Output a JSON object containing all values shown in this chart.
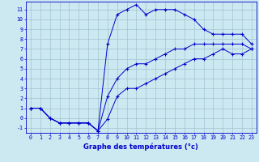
{
  "xlabel": "Graphe des températures (°c)",
  "hours": [
    0,
    1,
    2,
    3,
    4,
    5,
    6,
    7,
    8,
    9,
    10,
    11,
    12,
    13,
    14,
    15,
    16,
    17,
    18,
    19,
    20,
    21,
    22,
    23
  ],
  "temp_max": [
    1,
    1,
    0,
    -0.5,
    -0.5,
    -0.5,
    -0.5,
    -1.3,
    7.5,
    10.5,
    11,
    11.5,
    10.5,
    11,
    11,
    11,
    10.5,
    10,
    9,
    8.5,
    8.5,
    8.5,
    8.5,
    7.5
  ],
  "temp_min": [
    1,
    1,
    0,
    -0.5,
    -0.5,
    -0.5,
    -0.5,
    -1.3,
    -0.1,
    2.2,
    3,
    3,
    3.5,
    4,
    4.5,
    5,
    5.5,
    6,
    6,
    6.5,
    7,
    6.5,
    6.5,
    7
  ],
  "temp_mean": [
    1,
    1,
    0,
    -0.5,
    -0.5,
    -0.5,
    -0.5,
    -1.3,
    2.2,
    4,
    5,
    5.5,
    5.5,
    6,
    6.5,
    7,
    7,
    7.5,
    7.5,
    7.5,
    7.5,
    7.5,
    7.5,
    7
  ],
  "ylim": [
    -1.5,
    11.8
  ],
  "xlim": [
    -0.5,
    23.5
  ],
  "yticks": [
    -1,
    0,
    1,
    2,
    3,
    4,
    5,
    6,
    7,
    8,
    9,
    10,
    11
  ],
  "xticks": [
    0,
    1,
    2,
    3,
    4,
    5,
    6,
    7,
    8,
    9,
    10,
    11,
    12,
    13,
    14,
    15,
    16,
    17,
    18,
    19,
    20,
    21,
    22,
    23
  ],
  "line_color": "#0000cc",
  "bg_color": "#cce8f0",
  "grid_color": "#99bbcc",
  "label_fontsize": 5.5,
  "tick_fontsize": 4.8,
  "xlabel_fontsize": 6.0
}
